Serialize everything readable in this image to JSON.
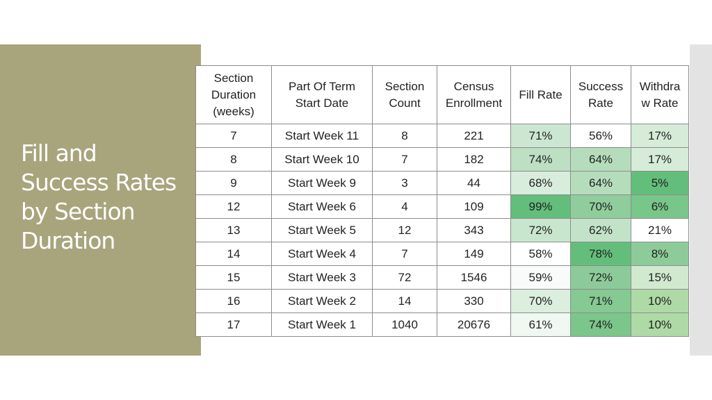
{
  "slide": {
    "title_lines": [
      "Fill and",
      "Success Rates",
      "by Section",
      "Duration"
    ]
  },
  "table": {
    "headers": [
      [
        "Section",
        "Duration",
        "(weeks)"
      ],
      [
        "Part Of Term",
        "Start Date"
      ],
      [
        "Section",
        "Count"
      ],
      [
        "Census",
        "Enrollment"
      ],
      [
        "Fill Rate"
      ],
      [
        "Success",
        "Rate"
      ],
      [
        "Withdra",
        "w Rate"
      ]
    ],
    "rows": [
      [
        "7",
        "Start Week 11",
        "8",
        "221",
        "71%",
        "56%",
        "17%"
      ],
      [
        "8",
        "Start Week 10",
        "7",
        "182",
        "74%",
        "64%",
        "17%"
      ],
      [
        "9",
        "Start Week 9",
        "3",
        "44",
        "68%",
        "64%",
        "5%"
      ],
      [
        "12",
        "Start Week 6",
        "4",
        "109",
        "99%",
        "70%",
        "6%"
      ],
      [
        "13",
        "Start Week 5",
        "12",
        "343",
        "72%",
        "62%",
        "21%"
      ],
      [
        "14",
        "Start Week 4",
        "7",
        "149",
        "58%",
        "78%",
        "8%"
      ],
      [
        "15",
        "Start Week 3",
        "72",
        "1546",
        "59%",
        "72%",
        "15%"
      ],
      [
        "16",
        "Start Week 2",
        "14",
        "330",
        "70%",
        "71%",
        "10%"
      ],
      [
        "17",
        "Start Week 1",
        "1040",
        "20676",
        "61%",
        "74%",
        "10%"
      ]
    ],
    "cell_colors": [
      [
        "#ffffff",
        "#ffffff",
        "#ffffff",
        "#ffffff",
        "#cbe7d1",
        "#ffffff",
        "#d6ecd9"
      ],
      [
        "#ffffff",
        "#ffffff",
        "#ffffff",
        "#ffffff",
        "#bde0c3",
        "#b5ddbc",
        "#d6ecd9"
      ],
      [
        "#ffffff",
        "#ffffff",
        "#ffffff",
        "#ffffff",
        "#d8eddc",
        "#b5ddbc",
        "#63be7b"
      ],
      [
        "#ffffff",
        "#ffffff",
        "#ffffff",
        "#ffffff",
        "#63be7b",
        "#90cd9c",
        "#78c68a"
      ],
      [
        "#ffffff",
        "#ffffff",
        "#ffffff",
        "#ffffff",
        "#c8e6ce",
        "#c3e3c9",
        "#ffffff"
      ],
      [
        "#ffffff",
        "#ffffff",
        "#ffffff",
        "#ffffff",
        "#ffffff",
        "#63be7b",
        "#8dcc99"
      ],
      [
        "#ffffff",
        "#ffffff",
        "#ffffff",
        "#ffffff",
        "#f8fbf9",
        "#8ccb99",
        "#d1eacf"
      ],
      [
        "#ffffff",
        "#ffffff",
        "#ffffff",
        "#ffffff",
        "#dcefdf",
        "#85c993",
        "#aedaa6"
      ],
      [
        "#ffffff",
        "#ffffff",
        "#ffffff",
        "#ffffff",
        "#f0f8f2",
        "#7bc68b",
        "#aedaa6"
      ]
    ]
  },
  "colors": {
    "side_panel": "#a8a47c",
    "title_text": "#ffffff",
    "right_bar": "#e3e3e3",
    "grid_line": "#8c8c8c"
  }
}
